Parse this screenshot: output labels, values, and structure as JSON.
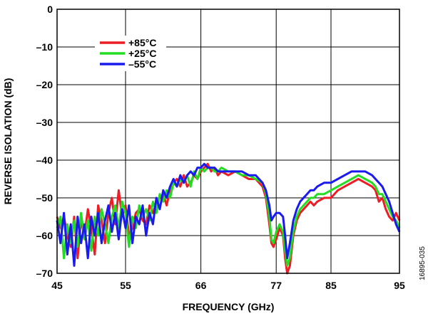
{
  "chart_data": {
    "type": "line",
    "xlabel": "FREQUENCY (GHz)",
    "ylabel": "REVERSE ISOLATION (dB)",
    "xlim": [
      45,
      95
    ],
    "ylim": [
      -70,
      0
    ],
    "x_ticks": [
      45,
      55,
      66,
      77,
      85,
      95
    ],
    "x_tick_labels": [
      "45",
      "55",
      "66",
      "77",
      "85",
      "95"
    ],
    "y_ticks": [
      0,
      -10,
      -20,
      -30,
      -40,
      -50,
      -60,
      -70
    ],
    "y_tick_labels": [
      "0",
      "–10",
      "–20",
      "–30",
      "–40",
      "–50",
      "–60",
      "–70"
    ],
    "grid": true,
    "legend_position": "top-left",
    "figure_id": "16895-035",
    "series": [
      {
        "name": "+85°C",
        "color": "#ee1c25",
        "points": [
          [
            45,
            -55
          ],
          [
            45.5,
            -58
          ],
          [
            46,
            -55
          ],
          [
            46.5,
            -60
          ],
          [
            47,
            -63
          ],
          [
            47.5,
            -55
          ],
          [
            48,
            -66
          ],
          [
            48.5,
            -56
          ],
          [
            49,
            -60
          ],
          [
            49.5,
            -53
          ],
          [
            50,
            -58
          ],
          [
            50.5,
            -65
          ],
          [
            51,
            -52
          ],
          [
            51.5,
            -56
          ],
          [
            52,
            -62
          ],
          [
            52.5,
            -54
          ],
          [
            53,
            -50
          ],
          [
            53.5,
            -57
          ],
          [
            54,
            -48
          ],
          [
            54.5,
            -55
          ],
          [
            55,
            -52
          ],
          [
            55.5,
            -60
          ],
          [
            56,
            -58
          ],
          [
            56.5,
            -54
          ],
          [
            57,
            -53
          ],
          [
            57.5,
            -56
          ],
          [
            58,
            -57
          ],
          [
            58.5,
            -52
          ],
          [
            59,
            -54
          ],
          [
            59.5,
            -51
          ],
          [
            60,
            -50
          ],
          [
            60.5,
            -49
          ],
          [
            61,
            -52
          ],
          [
            61.5,
            -48
          ],
          [
            62,
            -46
          ],
          [
            62.5,
            -45
          ],
          [
            63,
            -47
          ],
          [
            63.5,
            -44
          ],
          [
            64,
            -47
          ],
          [
            64.5,
            -46
          ],
          [
            65,
            -44
          ],
          [
            65.5,
            -45
          ],
          [
            66,
            -43
          ],
          [
            66.5,
            -42
          ],
          [
            67,
            -41
          ],
          [
            67.5,
            -43
          ],
          [
            68,
            -42
          ],
          [
            68.5,
            -44
          ],
          [
            69,
            -43
          ],
          [
            70,
            -44
          ],
          [
            71,
            -43
          ],
          [
            72,
            -44
          ],
          [
            73,
            -45
          ],
          [
            74,
            -45
          ],
          [
            75,
            -47
          ],
          [
            75.5,
            -50
          ],
          [
            76,
            -57
          ],
          [
            76.3,
            -62
          ],
          [
            76.6,
            -63
          ],
          [
            77,
            -61
          ],
          [
            77.5,
            -58
          ],
          [
            78,
            -60
          ],
          [
            78.3,
            -66
          ],
          [
            78.6,
            -70
          ],
          [
            79,
            -68
          ],
          [
            79.5,
            -60
          ],
          [
            80,
            -56
          ],
          [
            80.5,
            -54
          ],
          [
            81,
            -53
          ],
          [
            81.5,
            -52
          ],
          [
            82,
            -51
          ],
          [
            82.5,
            -52
          ],
          [
            83,
            -51
          ],
          [
            84,
            -50
          ],
          [
            85,
            -50
          ],
          [
            86,
            -48
          ],
          [
            87,
            -47
          ],
          [
            88,
            -46
          ],
          [
            89,
            -45
          ],
          [
            90,
            -46
          ],
          [
            91,
            -47
          ],
          [
            91.5,
            -48
          ],
          [
            92,
            -51
          ],
          [
            92.5,
            -50
          ],
          [
            93,
            -53
          ],
          [
            93.5,
            -55
          ],
          [
            94,
            -56
          ],
          [
            94.5,
            -54
          ],
          [
            95,
            -56
          ]
        ]
      },
      {
        "name": "+25°C",
        "color": "#22dd22",
        "points": [
          [
            45,
            -58
          ],
          [
            45.5,
            -55
          ],
          [
            46,
            -66
          ],
          [
            46.5,
            -57
          ],
          [
            47,
            -62
          ],
          [
            47.5,
            -56
          ],
          [
            48,
            -63
          ],
          [
            48.5,
            -54
          ],
          [
            49,
            -61
          ],
          [
            49.5,
            -56
          ],
          [
            50,
            -64
          ],
          [
            50.5,
            -55
          ],
          [
            51,
            -60
          ],
          [
            51.5,
            -53
          ],
          [
            52,
            -57
          ],
          [
            52.5,
            -62
          ],
          [
            53,
            -55
          ],
          [
            53.5,
            -52
          ],
          [
            54,
            -58
          ],
          [
            54.5,
            -51
          ],
          [
            55,
            -54
          ],
          [
            55.5,
            -63
          ],
          [
            56,
            -55
          ],
          [
            56.5,
            -58
          ],
          [
            57,
            -52
          ],
          [
            57.5,
            -55
          ],
          [
            58,
            -53
          ],
          [
            58.5,
            -56
          ],
          [
            59,
            -51
          ],
          [
            59.5,
            -54
          ],
          [
            60,
            -49
          ],
          [
            60.5,
            -51
          ],
          [
            61,
            -48
          ],
          [
            61.5,
            -50
          ],
          [
            62,
            -46
          ],
          [
            62.5,
            -47
          ],
          [
            63,
            -45
          ],
          [
            63.5,
            -46
          ],
          [
            64,
            -44
          ],
          [
            64.5,
            -47
          ],
          [
            65,
            -43
          ],
          [
            65.5,
            -45
          ],
          [
            66,
            -42
          ],
          [
            66.5,
            -43
          ],
          [
            67,
            -42
          ],
          [
            67.5,
            -42
          ],
          [
            68,
            -43
          ],
          [
            68.5,
            -43
          ],
          [
            69,
            -42
          ],
          [
            70,
            -43
          ],
          [
            71,
            -43
          ],
          [
            72,
            -44
          ],
          [
            73,
            -44
          ],
          [
            74,
            -45
          ],
          [
            75,
            -46
          ],
          [
            75.5,
            -49
          ],
          [
            76,
            -55
          ],
          [
            76.3,
            -61
          ],
          [
            76.6,
            -62
          ],
          [
            77,
            -59
          ],
          [
            77.5,
            -57
          ],
          [
            78,
            -59
          ],
          [
            78.3,
            -64
          ],
          [
            78.6,
            -68
          ],
          [
            79,
            -66
          ],
          [
            79.5,
            -59
          ],
          [
            80,
            -55
          ],
          [
            80.5,
            -53
          ],
          [
            81,
            -52
          ],
          [
            81.5,
            -51
          ],
          [
            82,
            -50
          ],
          [
            82.5,
            -50
          ],
          [
            83,
            -49
          ],
          [
            84,
            -49
          ],
          [
            85,
            -48
          ],
          [
            86,
            -47
          ],
          [
            87,
            -46
          ],
          [
            88,
            -45
          ],
          [
            89,
            -44
          ],
          [
            90,
            -45
          ],
          [
            91,
            -46
          ],
          [
            91.5,
            -47
          ],
          [
            92,
            -49
          ],
          [
            92.5,
            -49
          ],
          [
            93,
            -51
          ],
          [
            93.5,
            -53
          ],
          [
            94,
            -55
          ],
          [
            94.5,
            -56
          ],
          [
            95,
            -58
          ]
        ]
      },
      {
        "name": "–55°C",
        "color": "#1a1aee",
        "points": [
          [
            45,
            -56
          ],
          [
            45.5,
            -62
          ],
          [
            46,
            -54
          ],
          [
            46.5,
            -65
          ],
          [
            47,
            -57
          ],
          [
            47.5,
            -68
          ],
          [
            48,
            -55
          ],
          [
            48.5,
            -62
          ],
          [
            49,
            -57
          ],
          [
            49.5,
            -66
          ],
          [
            50,
            -55
          ],
          [
            50.5,
            -60
          ],
          [
            51,
            -54
          ],
          [
            51.5,
            -62
          ],
          [
            52,
            -56
          ],
          [
            52.5,
            -52
          ],
          [
            53,
            -59
          ],
          [
            53.5,
            -54
          ],
          [
            54,
            -61
          ],
          [
            54.5,
            -53
          ],
          [
            55,
            -58
          ],
          [
            55.5,
            -52
          ],
          [
            56,
            -62
          ],
          [
            56.5,
            -55
          ],
          [
            57,
            -57
          ],
          [
            57.5,
            -52
          ],
          [
            58,
            -60
          ],
          [
            58.5,
            -54
          ],
          [
            59,
            -57
          ],
          [
            59.5,
            -50
          ],
          [
            60,
            -53
          ],
          [
            60.5,
            -48
          ],
          [
            61,
            -50
          ],
          [
            61.5,
            -47
          ],
          [
            62,
            -45
          ],
          [
            62.5,
            -47
          ],
          [
            63,
            -44
          ],
          [
            63.5,
            -46
          ],
          [
            64,
            -44
          ],
          [
            64.5,
            -43
          ],
          [
            65,
            -44
          ],
          [
            65.5,
            -42
          ],
          [
            66,
            -42
          ],
          [
            66.5,
            -41
          ],
          [
            67,
            -42
          ],
          [
            67.5,
            -42
          ],
          [
            68,
            -42
          ],
          [
            68.5,
            -43
          ],
          [
            69,
            -43
          ],
          [
            70,
            -43
          ],
          [
            71,
            -43
          ],
          [
            72,
            -43
          ],
          [
            73,
            -44
          ],
          [
            74,
            -44
          ],
          [
            75,
            -46
          ],
          [
            75.5,
            -48
          ],
          [
            76,
            -52
          ],
          [
            76.3,
            -56
          ],
          [
            76.6,
            -55
          ],
          [
            77,
            -54
          ],
          [
            77.5,
            -54
          ],
          [
            78,
            -55
          ],
          [
            78.3,
            -60
          ],
          [
            78.6,
            -66
          ],
          [
            79,
            -62
          ],
          [
            79.5,
            -56
          ],
          [
            80,
            -53
          ],
          [
            80.5,
            -51
          ],
          [
            81,
            -50
          ],
          [
            81.5,
            -49
          ],
          [
            82,
            -48
          ],
          [
            82.5,
            -48
          ],
          [
            83,
            -47
          ],
          [
            84,
            -46
          ],
          [
            85,
            -46
          ],
          [
            86,
            -45
          ],
          [
            87,
            -44
          ],
          [
            88,
            -43
          ],
          [
            89,
            -43
          ],
          [
            90,
            -43
          ],
          [
            91,
            -44
          ],
          [
            91.5,
            -45
          ],
          [
            92,
            -46
          ],
          [
            92.5,
            -47
          ],
          [
            93,
            -49
          ],
          [
            93.5,
            -51
          ],
          [
            94,
            -54
          ],
          [
            94.5,
            -57
          ],
          [
            95,
            -59
          ]
        ]
      }
    ]
  }
}
